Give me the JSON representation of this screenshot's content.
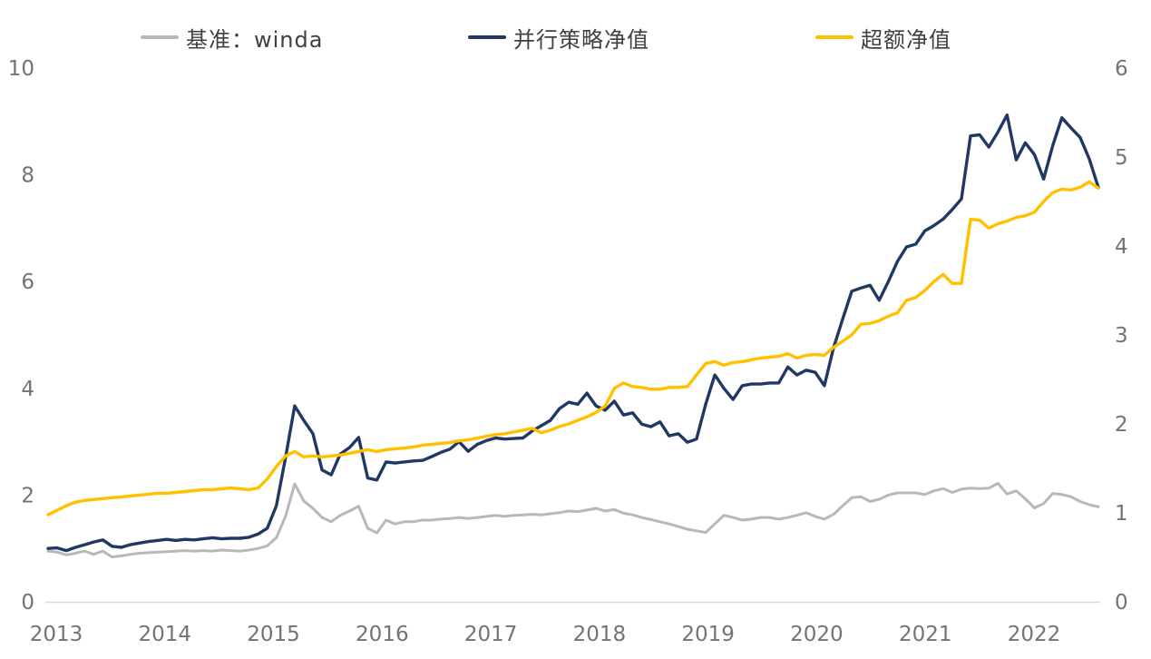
{
  "chart_data": {
    "type": "line",
    "title": "",
    "x_frequency": "monthly",
    "x_range": [
      "2013-01",
      "2022-08"
    ],
    "x_tick_labels": [
      "2013",
      "2014",
      "2015",
      "2016",
      "2017",
      "2018",
      "2019",
      "2020",
      "2021",
      "2022"
    ],
    "axes": {
      "left": {
        "min": 0,
        "max": 10,
        "ticks": [
          0,
          2,
          4,
          6,
          8,
          10
        ]
      },
      "right": {
        "min": 0,
        "max": 6,
        "ticks": [
          0,
          1,
          2,
          3,
          4,
          5,
          6
        ]
      }
    },
    "grid": "off",
    "legend_position": "top",
    "axis_label_color": "#737373",
    "axis_line_color": "#d9d9d9",
    "series": [
      {
        "name": "基准：winda",
        "axis": "left",
        "color": "#b8b8b8",
        "width": 3,
        "values": [
          0.95,
          0.93,
          0.88,
          0.91,
          0.95,
          0.89,
          0.95,
          0.84,
          0.86,
          0.89,
          0.91,
          0.92,
          0.93,
          0.94,
          0.95,
          0.96,
          0.95,
          0.96,
          0.95,
          0.97,
          0.96,
          0.95,
          0.97,
          1.0,
          1.05,
          1.2,
          1.6,
          2.21,
          1.89,
          1.75,
          1.58,
          1.5,
          1.62,
          1.7,
          1.79,
          1.38,
          1.29,
          1.53,
          1.46,
          1.5,
          1.5,
          1.53,
          1.53,
          1.55,
          1.56,
          1.58,
          1.56,
          1.58,
          1.6,
          1.62,
          1.6,
          1.62,
          1.63,
          1.64,
          1.63,
          1.65,
          1.67,
          1.7,
          1.69,
          1.72,
          1.75,
          1.7,
          1.73,
          1.66,
          1.63,
          1.58,
          1.54,
          1.5,
          1.46,
          1.41,
          1.36,
          1.33,
          1.3,
          1.46,
          1.62,
          1.58,
          1.53,
          1.55,
          1.58,
          1.58,
          1.55,
          1.58,
          1.62,
          1.67,
          1.6,
          1.55,
          1.64,
          1.8,
          1.95,
          1.97,
          1.88,
          1.92,
          2.0,
          2.04,
          2.04,
          2.04,
          2.01,
          2.08,
          2.12,
          2.05,
          2.11,
          2.13,
          2.12,
          2.13,
          2.22,
          2.02,
          2.08,
          1.93,
          1.76,
          1.84,
          2.03,
          2.01,
          1.97,
          1.88,
          1.82,
          1.78
        ]
      },
      {
        "name": "并行策略净值",
        "axis": "left",
        "color": "#1f3864",
        "width": 3.4,
        "values": [
          1.0,
          1.01,
          0.96,
          1.02,
          1.07,
          1.12,
          1.16,
          1.04,
          1.02,
          1.07,
          1.1,
          1.13,
          1.15,
          1.17,
          1.15,
          1.17,
          1.16,
          1.18,
          1.2,
          1.18,
          1.19,
          1.19,
          1.21,
          1.27,
          1.38,
          1.8,
          2.7,
          3.67,
          3.4,
          3.15,
          2.47,
          2.38,
          2.77,
          2.89,
          3.08,
          2.32,
          2.28,
          2.62,
          2.6,
          2.62,
          2.64,
          2.65,
          2.72,
          2.8,
          2.86,
          3.0,
          2.82,
          2.95,
          3.02,
          3.07,
          3.05,
          3.06,
          3.07,
          3.2,
          3.3,
          3.4,
          3.62,
          3.74,
          3.7,
          3.91,
          3.67,
          3.59,
          3.76,
          3.5,
          3.54,
          3.33,
          3.28,
          3.37,
          3.11,
          3.15,
          2.99,
          3.05,
          3.7,
          4.25,
          4.0,
          3.79,
          4.05,
          4.08,
          4.08,
          4.1,
          4.1,
          4.4,
          4.25,
          4.34,
          4.3,
          4.05,
          4.76,
          5.3,
          5.82,
          5.88,
          5.93,
          5.65,
          6.0,
          6.38,
          6.65,
          6.7,
          6.95,
          7.05,
          7.17,
          7.35,
          7.55,
          8.73,
          8.75,
          8.52,
          8.8,
          9.12,
          8.28,
          8.6,
          8.38,
          7.92,
          8.55,
          9.07,
          8.88,
          8.7,
          8.3,
          7.76
        ]
      },
      {
        "name": "超额净值",
        "axis": "right",
        "color": "#ffc000",
        "width": 3.4,
        "values": [
          0.98,
          1.03,
          1.08,
          1.12,
          1.14,
          1.15,
          1.16,
          1.17,
          1.18,
          1.19,
          1.2,
          1.21,
          1.22,
          1.22,
          1.23,
          1.24,
          1.25,
          1.26,
          1.26,
          1.27,
          1.28,
          1.27,
          1.26,
          1.28,
          1.38,
          1.52,
          1.64,
          1.69,
          1.63,
          1.64,
          1.63,
          1.64,
          1.65,
          1.67,
          1.69,
          1.71,
          1.69,
          1.71,
          1.72,
          1.73,
          1.74,
          1.76,
          1.77,
          1.78,
          1.79,
          1.81,
          1.82,
          1.84,
          1.86,
          1.88,
          1.89,
          1.91,
          1.93,
          1.95,
          1.9,
          1.93,
          1.97,
          2.0,
          2.04,
          2.08,
          2.13,
          2.2,
          2.4,
          2.46,
          2.42,
          2.41,
          2.39,
          2.39,
          2.41,
          2.41,
          2.42,
          2.55,
          2.68,
          2.7,
          2.66,
          2.69,
          2.7,
          2.72,
          2.74,
          2.75,
          2.76,
          2.79,
          2.74,
          2.77,
          2.78,
          2.77,
          2.86,
          2.93,
          3.0,
          3.12,
          3.13,
          3.16,
          3.21,
          3.25,
          3.39,
          3.42,
          3.5,
          3.6,
          3.68,
          3.58,
          3.58,
          4.3,
          4.29,
          4.2,
          4.25,
          4.28,
          4.32,
          4.34,
          4.38,
          4.5,
          4.6,
          4.64,
          4.63,
          4.66,
          4.72,
          4.65
        ]
      }
    ]
  }
}
